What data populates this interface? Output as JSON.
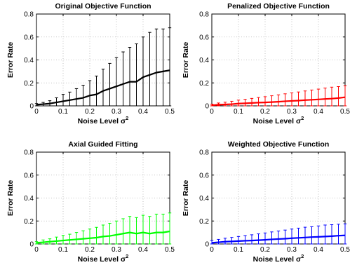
{
  "chart_data": [
    {
      "type": "line",
      "title": "Original Objective Function",
      "xlabel": "Noise Level σ",
      "xlabel_sup": "2",
      "ylabel": "Error Rate",
      "xlim": [
        0,
        0.5
      ],
      "ylim": [
        0,
        0.8
      ],
      "grid": true,
      "color": "#000000",
      "xticks": [
        "0",
        "0.1",
        "0.2",
        "0.3",
        "0.4",
        "0.5"
      ],
      "yticks": [
        "0",
        "0.2",
        "0.4",
        "0.6",
        "0.8"
      ],
      "series": [
        {
          "x": [
            0,
            0.025,
            0.05,
            0.075,
            0.1,
            0.125,
            0.15,
            0.175,
            0.2,
            0.225,
            0.25,
            0.275,
            0.3,
            0.325,
            0.35,
            0.375,
            0.4,
            0.425,
            0.45,
            0.475,
            0.5
          ],
          "y": [
            0.01,
            0.015,
            0.02,
            0.03,
            0.04,
            0.05,
            0.06,
            0.07,
            0.09,
            0.1,
            0.13,
            0.15,
            0.17,
            0.19,
            0.21,
            0.21,
            0.25,
            0.27,
            0.29,
            0.3,
            0.31
          ],
          "err": [
            0.01,
            0.015,
            0.025,
            0.04,
            0.06,
            0.07,
            0.09,
            0.11,
            0.13,
            0.16,
            0.19,
            0.22,
            0.25,
            0.28,
            0.3,
            0.33,
            0.35,
            0.37,
            0.38,
            0.37,
            0.37
          ]
        }
      ]
    },
    {
      "type": "line",
      "title": "Penalized Objective Function",
      "xlabel": "Noise Level σ",
      "xlabel_sup": "2",
      "ylabel": "Error Rate",
      "xlim": [
        0,
        0.5
      ],
      "ylim": [
        0,
        0.8
      ],
      "grid": true,
      "color": "#ff0000",
      "xticks": [
        "0",
        "0.1",
        "0.2",
        "0.3",
        "0.4",
        "0.5"
      ],
      "yticks": [
        "0",
        "0.2",
        "0.4",
        "0.6",
        "0.8"
      ],
      "series": [
        {
          "x": [
            0,
            0.025,
            0.05,
            0.075,
            0.1,
            0.125,
            0.15,
            0.175,
            0.2,
            0.225,
            0.25,
            0.275,
            0.3,
            0.325,
            0.35,
            0.375,
            0.4,
            0.425,
            0.45,
            0.475,
            0.5
          ],
          "y": [
            0.005,
            0.01,
            0.012,
            0.015,
            0.02,
            0.022,
            0.025,
            0.028,
            0.03,
            0.033,
            0.036,
            0.04,
            0.043,
            0.046,
            0.05,
            0.053,
            0.056,
            0.06,
            0.063,
            0.068,
            0.075
          ],
          "err": [
            0.01,
            0.015,
            0.02,
            0.025,
            0.03,
            0.035,
            0.04,
            0.045,
            0.05,
            0.055,
            0.06,
            0.065,
            0.07,
            0.075,
            0.08,
            0.085,
            0.09,
            0.095,
            0.1,
            0.1,
            0.1
          ]
        }
      ]
    },
    {
      "type": "line",
      "title": "Axial Guided Fitting",
      "xlabel": "Noise Level σ",
      "xlabel_sup": "2",
      "ylabel": "Error Rate",
      "xlim": [
        0,
        0.5
      ],
      "ylim": [
        0,
        0.8
      ],
      "grid": true,
      "color": "#00ff00",
      "xticks": [
        "0",
        "0.1",
        "0.2",
        "0.3",
        "0.4",
        "0.5"
      ],
      "yticks": [
        "0",
        "0.2",
        "0.4",
        "0.6",
        "0.8"
      ],
      "series": [
        {
          "x": [
            0,
            0.025,
            0.05,
            0.075,
            0.1,
            0.125,
            0.15,
            0.175,
            0.2,
            0.225,
            0.25,
            0.275,
            0.3,
            0.325,
            0.35,
            0.375,
            0.4,
            0.425,
            0.45,
            0.475,
            0.5
          ],
          "y": [
            0.01,
            0.015,
            0.02,
            0.025,
            0.03,
            0.035,
            0.04,
            0.045,
            0.05,
            0.055,
            0.065,
            0.07,
            0.08,
            0.09,
            0.1,
            0.09,
            0.1,
            0.09,
            0.1,
            0.1,
            0.11
          ],
          "err": [
            0.01,
            0.02,
            0.025,
            0.035,
            0.045,
            0.05,
            0.06,
            0.07,
            0.08,
            0.09,
            0.1,
            0.11,
            0.12,
            0.13,
            0.14,
            0.14,
            0.15,
            0.15,
            0.16,
            0.16,
            0.16
          ]
        }
      ]
    },
    {
      "type": "line",
      "title": "Weighted Objective Function",
      "xlabel": "Noise Level σ",
      "xlabel_sup": "2",
      "ylabel": "Error Rate",
      "xlim": [
        0,
        0.5
      ],
      "ylim": [
        0,
        0.8
      ],
      "grid": true,
      "color": "#0000ff",
      "xticks": [
        "0",
        "0.1",
        "0.2",
        "0.3",
        "0.4",
        "0.5"
      ],
      "yticks": [
        "0",
        "0.2",
        "0.4",
        "0.6",
        "0.8"
      ],
      "series": [
        {
          "x": [
            0,
            0.025,
            0.05,
            0.075,
            0.1,
            0.125,
            0.15,
            0.175,
            0.2,
            0.225,
            0.25,
            0.275,
            0.3,
            0.325,
            0.35,
            0.375,
            0.4,
            0.425,
            0.45,
            0.475,
            0.5
          ],
          "y": [
            0.01,
            0.015,
            0.02,
            0.022,
            0.025,
            0.028,
            0.03,
            0.033,
            0.036,
            0.04,
            0.043,
            0.046,
            0.05,
            0.053,
            0.056,
            0.06,
            0.062,
            0.065,
            0.068,
            0.072,
            0.075
          ],
          "err": [
            0.02,
            0.025,
            0.03,
            0.035,
            0.04,
            0.045,
            0.05,
            0.055,
            0.06,
            0.065,
            0.07,
            0.075,
            0.08,
            0.085,
            0.09,
            0.09,
            0.095,
            0.1,
            0.1,
            0.1,
            0.1
          ]
        }
      ]
    }
  ]
}
